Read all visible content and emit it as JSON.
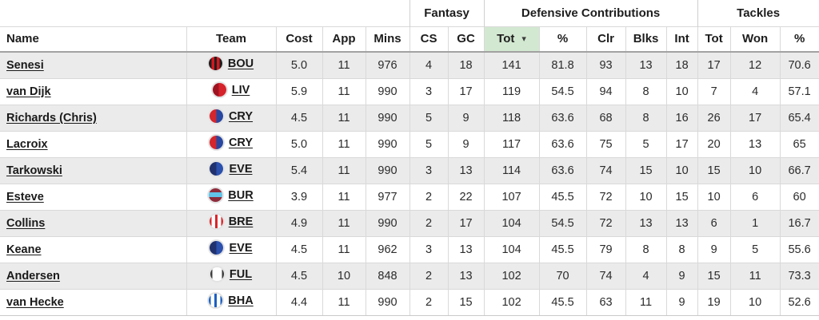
{
  "table": {
    "groups": [
      {
        "label": "",
        "span": 5
      },
      {
        "label": "Fantasy",
        "span": 2
      },
      {
        "label": "Defensive Contributions",
        "span": 5
      },
      {
        "label": "Tackles",
        "span": 3
      }
    ],
    "columns": [
      {
        "key": "name",
        "label": "Name",
        "align": "left"
      },
      {
        "key": "team",
        "label": "Team"
      },
      {
        "key": "cost",
        "label": "Cost"
      },
      {
        "key": "app",
        "label": "App"
      },
      {
        "key": "mins",
        "label": "Mins"
      },
      {
        "key": "cs",
        "label": "CS"
      },
      {
        "key": "gc",
        "label": "GC"
      },
      {
        "key": "dc_tot",
        "label": "Tot",
        "sorted": "desc"
      },
      {
        "key": "dc_pct",
        "label": "%"
      },
      {
        "key": "clr",
        "label": "Clr"
      },
      {
        "key": "blks",
        "label": "Blks"
      },
      {
        "key": "int",
        "label": "Int"
      },
      {
        "key": "tk_tot",
        "label": "Tot"
      },
      {
        "key": "won",
        "label": "Won"
      },
      {
        "key": "tk_pct",
        "label": "%"
      }
    ],
    "rows": [
      {
        "name": "Senesi",
        "team": "BOU",
        "cost": "5.0",
        "app": "11",
        "mins": "976",
        "cs": "4",
        "gc": "18",
        "dc_tot": "141",
        "dc_pct": "81.8",
        "clr": "93",
        "blks": "13",
        "int": "18",
        "tk_tot": "17",
        "won": "12",
        "tk_pct": "70.6"
      },
      {
        "name": "van Dijk",
        "team": "LIV",
        "cost": "5.9",
        "app": "11",
        "mins": "990",
        "cs": "3",
        "gc": "17",
        "dc_tot": "119",
        "dc_pct": "54.5",
        "clr": "94",
        "blks": "8",
        "int": "10",
        "tk_tot": "7",
        "won": "4",
        "tk_pct": "57.1"
      },
      {
        "name": "Richards (Chris)",
        "team": "CRY",
        "cost": "4.5",
        "app": "11",
        "mins": "990",
        "cs": "5",
        "gc": "9",
        "dc_tot": "118",
        "dc_pct": "63.6",
        "clr": "68",
        "blks": "8",
        "int": "16",
        "tk_tot": "26",
        "won": "17",
        "tk_pct": "65.4"
      },
      {
        "name": "Lacroix",
        "team": "CRY",
        "cost": "5.0",
        "app": "11",
        "mins": "990",
        "cs": "5",
        "gc": "9",
        "dc_tot": "117",
        "dc_pct": "63.6",
        "clr": "75",
        "blks": "5",
        "int": "17",
        "tk_tot": "20",
        "won": "13",
        "tk_pct": "65"
      },
      {
        "name": "Tarkowski",
        "team": "EVE",
        "cost": "5.4",
        "app": "11",
        "mins": "990",
        "cs": "3",
        "gc": "13",
        "dc_tot": "114",
        "dc_pct": "63.6",
        "clr": "74",
        "blks": "15",
        "int": "10",
        "tk_tot": "15",
        "won": "10",
        "tk_pct": "66.7"
      },
      {
        "name": "Esteve",
        "team": "BUR",
        "cost": "3.9",
        "app": "11",
        "mins": "977",
        "cs": "2",
        "gc": "22",
        "dc_tot": "107",
        "dc_pct": "45.5",
        "clr": "72",
        "blks": "10",
        "int": "15",
        "tk_tot": "10",
        "won": "6",
        "tk_pct": "60"
      },
      {
        "name": "Collins",
        "team": "BRE",
        "cost": "4.9",
        "app": "11",
        "mins": "990",
        "cs": "2",
        "gc": "17",
        "dc_tot": "104",
        "dc_pct": "54.5",
        "clr": "72",
        "blks": "13",
        "int": "13",
        "tk_tot": "6",
        "won": "1",
        "tk_pct": "16.7"
      },
      {
        "name": "Keane",
        "team": "EVE",
        "cost": "4.5",
        "app": "11",
        "mins": "962",
        "cs": "3",
        "gc": "13",
        "dc_tot": "104",
        "dc_pct": "45.5",
        "clr": "79",
        "blks": "8",
        "int": "8",
        "tk_tot": "9",
        "won": "5",
        "tk_pct": "55.6"
      },
      {
        "name": "Andersen",
        "team": "FUL",
        "cost": "4.5",
        "app": "10",
        "mins": "848",
        "cs": "2",
        "gc": "13",
        "dc_tot": "102",
        "dc_pct": "70",
        "clr": "74",
        "blks": "4",
        "int": "9",
        "tk_tot": "15",
        "won": "11",
        "tk_pct": "73.3"
      },
      {
        "name": "van Hecke",
        "team": "BHA",
        "cost": "4.4",
        "app": "11",
        "mins": "990",
        "cs": "2",
        "gc": "15",
        "dc_tot": "102",
        "dc_pct": "45.5",
        "clr": "63",
        "blks": "11",
        "int": "9",
        "tk_tot": "19",
        "won": "10",
        "tk_pct": "52.6"
      }
    ]
  },
  "team_badges": {
    "BOU": "linear-gradient(90deg,#1f1f1f 0 20%,#d3171e 20% 40%,#1f1f1f 40% 60%,#d3171e 60% 80%,#1f1f1f 80% 100%)",
    "LIV": "linear-gradient(90deg,#9e1220 0 45%,#d6222b 45% 100%)",
    "CRY": "linear-gradient(90deg,#d3262d 0 50%,#2847a0 50% 100%)",
    "EVE": "linear-gradient(90deg,#20316e 0 50%,#2b50ae 50% 100%)",
    "BUR": "linear-gradient(180deg,#8d2b3c 0 30%,#62c3e8 30% 64%,#8d2b3c 64% 100%)",
    "BRE": "linear-gradient(90deg,#d8262b 0 16%,#ffffff 16% 40%,#d8262b 40% 60%,#ffffff 60% 84%,#d8262b 84% 100%)",
    "FUL": "linear-gradient(90deg,#3a3a3a 0 15%,#ffffff 15% 85%,#3a3a3a 85% 100%)",
    "BHA": "linear-gradient(90deg,#1b5fc0 0 16%,#ffffff 16% 40%,#1b5fc0 40% 60%,#ffffff 60% 84%,#1b5fc0 84% 100%)"
  },
  "colors": {
    "sorted_header_bg": "#d3e8d1",
    "row_stripe": "#ebebeb",
    "cell_border": "#d9d9d9",
    "header_bottom_border": "#a2a2a2"
  },
  "icons": {
    "sort_desc_arrow": "▾"
  }
}
